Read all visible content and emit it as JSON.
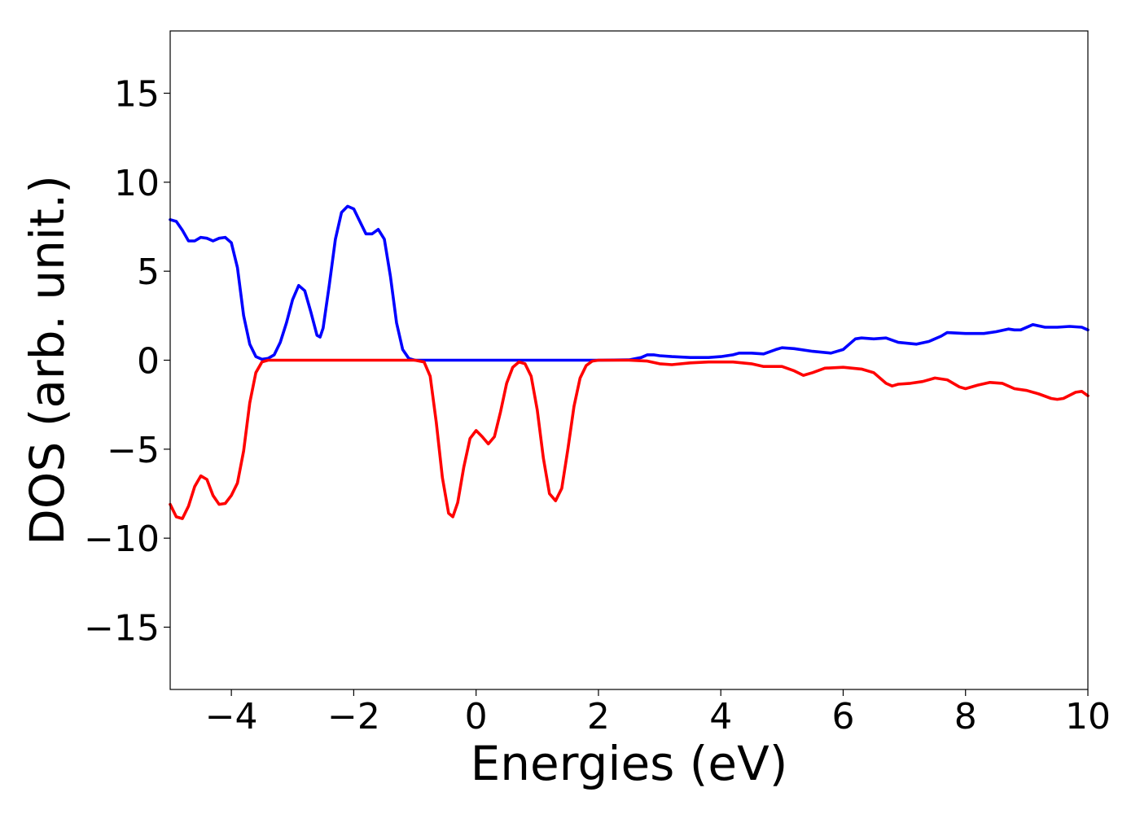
{
  "chart_data": {
    "type": "line",
    "title": "",
    "xlabel": "Energies (eV)",
    "ylabel": "DOS (arb. unit.)",
    "xlim": [
      -5,
      10
    ],
    "ylim": [
      -18.5,
      18.5
    ],
    "grid": false,
    "x_ticks": [
      -4,
      -2,
      0,
      2,
      4,
      6,
      8,
      10
    ],
    "x_tick_labels": [
      "−4",
      "−2",
      "0",
      "2",
      "4",
      "6",
      "8",
      "10"
    ],
    "y_ticks": [
      15,
      10,
      5,
      0,
      -5,
      -10,
      -15
    ],
    "y_tick_labels": [
      "15",
      "10",
      "5",
      "0",
      "−5",
      "−10",
      "−15"
    ],
    "series": [
      {
        "color": "#0000ff",
        "points": [
          [
            -5.0,
            7.9
          ],
          [
            -4.9,
            7.8
          ],
          [
            -4.8,
            7.3
          ],
          [
            -4.7,
            6.7
          ],
          [
            -4.6,
            6.7
          ],
          [
            -4.5,
            6.9
          ],
          [
            -4.4,
            6.85
          ],
          [
            -4.3,
            6.7
          ],
          [
            -4.2,
            6.85
          ],
          [
            -4.1,
            6.9
          ],
          [
            -4.0,
            6.6
          ],
          [
            -3.9,
            5.2
          ],
          [
            -3.8,
            2.5
          ],
          [
            -3.7,
            0.9
          ],
          [
            -3.6,
            0.2
          ],
          [
            -3.5,
            0.05
          ],
          [
            -3.4,
            0.1
          ],
          [
            -3.3,
            0.3
          ],
          [
            -3.2,
            1.0
          ],
          [
            -3.1,
            2.1
          ],
          [
            -3.0,
            3.4
          ],
          [
            -2.9,
            4.2
          ],
          [
            -2.8,
            3.9
          ],
          [
            -2.7,
            2.7
          ],
          [
            -2.6,
            1.4
          ],
          [
            -2.55,
            1.3
          ],
          [
            -2.5,
            1.8
          ],
          [
            -2.4,
            4.2
          ],
          [
            -2.3,
            6.8
          ],
          [
            -2.2,
            8.3
          ],
          [
            -2.1,
            8.65
          ],
          [
            -2.0,
            8.5
          ],
          [
            -1.9,
            7.8
          ],
          [
            -1.8,
            7.1
          ],
          [
            -1.7,
            7.1
          ],
          [
            -1.6,
            7.35
          ],
          [
            -1.5,
            6.8
          ],
          [
            -1.4,
            4.7
          ],
          [
            -1.3,
            2.1
          ],
          [
            -1.2,
            0.6
          ],
          [
            -1.1,
            0.1
          ],
          [
            -1.0,
            0.0
          ],
          [
            0.0,
            0.0
          ],
          [
            1.0,
            0.0
          ],
          [
            2.0,
            0.0
          ],
          [
            2.5,
            0.02
          ],
          [
            2.7,
            0.15
          ],
          [
            2.8,
            0.3
          ],
          [
            2.9,
            0.3
          ],
          [
            3.0,
            0.25
          ],
          [
            3.2,
            0.2
          ],
          [
            3.5,
            0.15
          ],
          [
            3.8,
            0.15
          ],
          [
            4.0,
            0.2
          ],
          [
            4.2,
            0.3
          ],
          [
            4.3,
            0.4
          ],
          [
            4.5,
            0.4
          ],
          [
            4.7,
            0.35
          ],
          [
            4.9,
            0.6
          ],
          [
            5.0,
            0.7
          ],
          [
            5.2,
            0.65
          ],
          [
            5.5,
            0.5
          ],
          [
            5.8,
            0.4
          ],
          [
            6.0,
            0.6
          ],
          [
            6.1,
            0.9
          ],
          [
            6.2,
            1.2
          ],
          [
            6.3,
            1.25
          ],
          [
            6.5,
            1.2
          ],
          [
            6.7,
            1.25
          ],
          [
            6.9,
            1.0
          ],
          [
            7.2,
            0.9
          ],
          [
            7.4,
            1.05
          ],
          [
            7.6,
            1.35
          ],
          [
            7.7,
            1.55
          ],
          [
            8.0,
            1.5
          ],
          [
            8.3,
            1.5
          ],
          [
            8.5,
            1.6
          ],
          [
            8.7,
            1.75
          ],
          [
            8.8,
            1.7
          ],
          [
            8.9,
            1.7
          ],
          [
            9.1,
            2.0
          ],
          [
            9.3,
            1.85
          ],
          [
            9.5,
            1.85
          ],
          [
            9.7,
            1.9
          ],
          [
            9.9,
            1.85
          ],
          [
            10.0,
            1.7
          ]
        ]
      },
      {
        "color": "#ff0000",
        "points": [
          [
            -5.0,
            -8.1
          ],
          [
            -4.9,
            -8.8
          ],
          [
            -4.8,
            -8.9
          ],
          [
            -4.7,
            -8.2
          ],
          [
            -4.6,
            -7.1
          ],
          [
            -4.5,
            -6.5
          ],
          [
            -4.4,
            -6.7
          ],
          [
            -4.3,
            -7.6
          ],
          [
            -4.2,
            -8.1
          ],
          [
            -4.1,
            -8.05
          ],
          [
            -4.0,
            -7.6
          ],
          [
            -3.9,
            -6.9
          ],
          [
            -3.8,
            -5.1
          ],
          [
            -3.7,
            -2.4
          ],
          [
            -3.6,
            -0.7
          ],
          [
            -3.5,
            -0.1
          ],
          [
            -3.4,
            0.0
          ],
          [
            -2.0,
            0.0
          ],
          [
            -1.0,
            0.0
          ],
          [
            -0.85,
            -0.1
          ],
          [
            -0.75,
            -0.9
          ],
          [
            -0.65,
            -3.5
          ],
          [
            -0.55,
            -6.6
          ],
          [
            -0.45,
            -8.6
          ],
          [
            -0.38,
            -8.8
          ],
          [
            -0.3,
            -8.0
          ],
          [
            -0.2,
            -6.0
          ],
          [
            -0.1,
            -4.4
          ],
          [
            0.0,
            -3.95
          ],
          [
            0.1,
            -4.3
          ],
          [
            0.2,
            -4.7
          ],
          [
            0.3,
            -4.3
          ],
          [
            0.4,
            -2.9
          ],
          [
            0.5,
            -1.3
          ],
          [
            0.6,
            -0.4
          ],
          [
            0.7,
            -0.1
          ],
          [
            0.8,
            -0.2
          ],
          [
            0.9,
            -0.9
          ],
          [
            1.0,
            -2.8
          ],
          [
            1.1,
            -5.5
          ],
          [
            1.2,
            -7.5
          ],
          [
            1.3,
            -7.9
          ],
          [
            1.4,
            -7.2
          ],
          [
            1.5,
            -5.0
          ],
          [
            1.6,
            -2.6
          ],
          [
            1.7,
            -1.0
          ],
          [
            1.8,
            -0.3
          ],
          [
            1.9,
            -0.05
          ],
          [
            2.0,
            0.0
          ],
          [
            2.5,
            0.0
          ],
          [
            2.8,
            -0.05
          ],
          [
            3.0,
            -0.2
          ],
          [
            3.2,
            -0.25
          ],
          [
            3.5,
            -0.15
          ],
          [
            3.8,
            -0.1
          ],
          [
            4.2,
            -0.1
          ],
          [
            4.5,
            -0.2
          ],
          [
            4.7,
            -0.35
          ],
          [
            5.0,
            -0.35
          ],
          [
            5.2,
            -0.6
          ],
          [
            5.35,
            -0.85
          ],
          [
            5.5,
            -0.7
          ],
          [
            5.7,
            -0.45
          ],
          [
            6.0,
            -0.4
          ],
          [
            6.3,
            -0.5
          ],
          [
            6.5,
            -0.7
          ],
          [
            6.7,
            -1.3
          ],
          [
            6.8,
            -1.45
          ],
          [
            6.9,
            -1.35
          ],
          [
            7.1,
            -1.3
          ],
          [
            7.3,
            -1.2
          ],
          [
            7.5,
            -1.0
          ],
          [
            7.7,
            -1.1
          ],
          [
            7.9,
            -1.5
          ],
          [
            8.0,
            -1.6
          ],
          [
            8.2,
            -1.4
          ],
          [
            8.4,
            -1.25
          ],
          [
            8.6,
            -1.3
          ],
          [
            8.8,
            -1.6
          ],
          [
            9.0,
            -1.7
          ],
          [
            9.2,
            -1.9
          ],
          [
            9.4,
            -2.15
          ],
          [
            9.5,
            -2.2
          ],
          [
            9.6,
            -2.15
          ],
          [
            9.8,
            -1.8
          ],
          [
            9.9,
            -1.75
          ],
          [
            10.0,
            -2.0
          ]
        ]
      }
    ]
  }
}
